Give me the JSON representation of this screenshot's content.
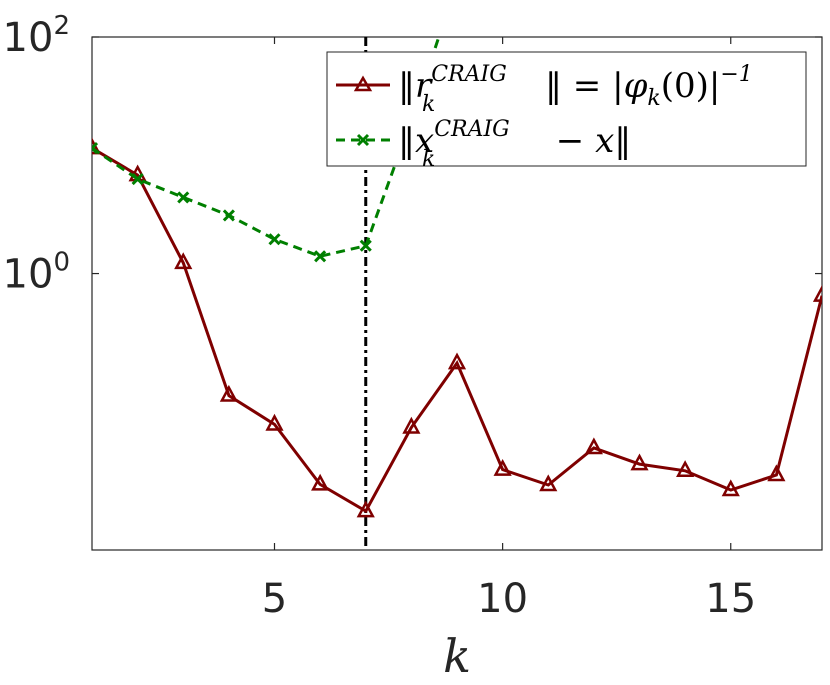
{
  "chart_data": {
    "type": "line",
    "xlabel": "k",
    "ylabel": "",
    "xlim": [
      1,
      17
    ],
    "ylim": [
      0.0046,
      100
    ],
    "yscale": "log",
    "xticks": [
      5,
      10,
      15
    ],
    "yticks": [
      {
        "value": 1,
        "base": "10",
        "exp": "0"
      },
      {
        "value": 100,
        "base": "10",
        "exp": "2"
      }
    ],
    "vline": {
      "x": 7,
      "color": "#000000",
      "style": "dash-dot"
    },
    "legend_position": "top-right",
    "series": [
      {
        "name": "‖r_k^CRAIG‖ = |φ_k(0)|^-1",
        "legend": {
          "a": "‖",
          "b": "r",
          "c": "CRAIG",
          "d": "k",
          "e": "‖ = |",
          "f": "φ",
          "g": "k",
          "h": "(0)|",
          "i": "−1"
        },
        "color": "#7f0000",
        "marker": "triangle",
        "line": "solid",
        "x": [
          1,
          2,
          3,
          4,
          5,
          6,
          7,
          8,
          9,
          10,
          11,
          12,
          13,
          14,
          15,
          16,
          17
        ],
        "y": [
          11.5,
          6.8,
          1.23,
          0.093,
          0.053,
          0.0165,
          0.0098,
          0.05,
          0.175,
          0.022,
          0.0163,
          0.0335,
          0.0245,
          0.0215,
          0.0148,
          0.0198,
          0.65
        ]
      },
      {
        "name": "‖x_k^CRAIG − x‖",
        "legend": {
          "a": "‖",
          "b": "x",
          "c": "CRAIG",
          "d": "k",
          "e": " − ",
          "f": "x",
          "g": "‖"
        },
        "color": "#007f00",
        "marker": "x",
        "line": "dashed",
        "x": [
          1,
          2,
          3,
          4,
          5,
          6,
          7,
          8,
          8.7
        ],
        "y": [
          11.5,
          6.3,
          4.4,
          3.1,
          1.95,
          1.4,
          1.72,
          20,
          130
        ]
      }
    ]
  }
}
